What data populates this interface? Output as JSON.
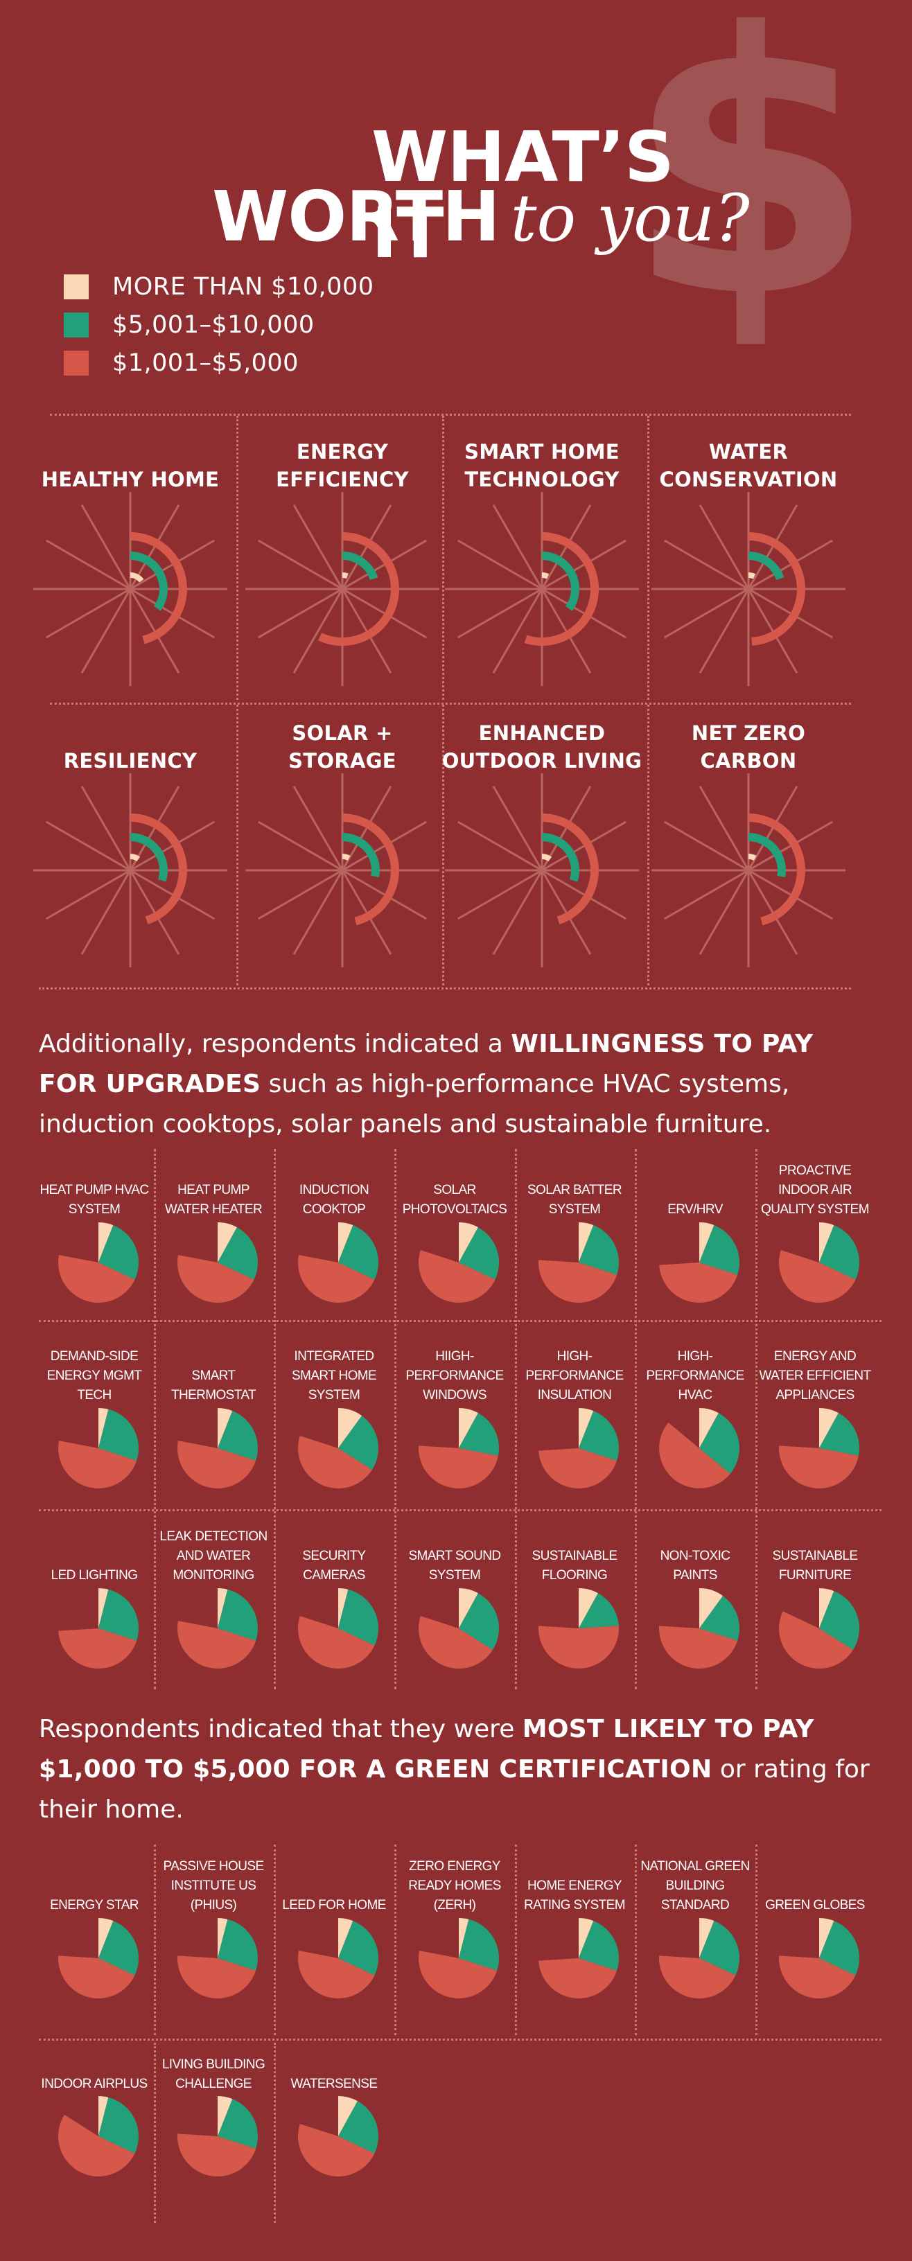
{
  "header": {
    "title_line1": "WHAT’S IT",
    "title_line2_bold": "WORTH",
    "title_line2_italic": "to you?",
    "decor_symbol": "$"
  },
  "colors": {
    "background": "#8e2e31",
    "more_than_10000": "#fbd8b6",
    "range_5001_10000": "#21a07a",
    "range_1001_5000": "#d6584a",
    "spoke": "#b86560",
    "divider": "#c87a72",
    "dollar": "#a25a58"
  },
  "legend": [
    {
      "label": "MORE THAN $10,000",
      "color": "#fbd8b6"
    },
    {
      "label": "$5,001–$10,000",
      "color": "#21a07a"
    },
    {
      "label": "$1,001–$5,000",
      "color": "#d6584a"
    }
  ],
  "paragraphs": {
    "upgrades": [
      {
        "text": "Additionally, respondents indicated a ",
        "strong": false
      },
      {
        "text": "WILLINGNESS TO PAY FOR UPGRADES",
        "strong": true
      },
      {
        "text": " such as high-performance HVAC systems, induction cooktops, solar panels and sustainable furniture.",
        "strong": false
      }
    ],
    "certification": [
      {
        "text": "Respondents indicated that they were ",
        "strong": false
      },
      {
        "text": "MOST LIKELY TO PAY $1,000 TO $5,000 FOR A GREEN CERTIFICATION",
        "strong": true
      },
      {
        "text": " or rating for their home.",
        "strong": false
      }
    ]
  },
  "chart_data": [
    {
      "type": "radial-bar",
      "title": "",
      "series": [
        "MORE THAN $10,000",
        "$5,001–$10,000",
        "$1,001–$5,000"
      ],
      "categories": [
        {
          "label": "HEALTHY HOME",
          "values": [
            15,
            35,
            46
          ]
        },
        {
          "label": "ENERGY EFFICIENCY",
          "values": [
            6,
            20,
            57
          ]
        },
        {
          "label": "SMART HOME TECHNOLOGY",
          "values": [
            7,
            35,
            55
          ]
        },
        {
          "label": "WATER CONSERVATION",
          "values": [
            7,
            20,
            49
          ]
        },
        {
          "label": "RESILIENCY",
          "values": [
            10,
            30,
            45
          ]
        },
        {
          "label": "SOLAR + STORAGE",
          "values": [
            8,
            28,
            46
          ]
        },
        {
          "label": "ENHANCED OUTDOOR LIVING",
          "values": [
            10,
            30,
            45
          ]
        },
        {
          "label": "NET ZERO CARBON",
          "values": [
            8,
            28,
            46
          ]
        }
      ]
    },
    {
      "type": "pie",
      "title": "",
      "series": [
        "MORE THAN $10,000",
        "$5,001–$10,000",
        "$1,001–$5,000"
      ],
      "items": [
        {
          "label": "HEAT PUMP HVAC SYSTEM",
          "values": [
            6,
            26,
            46
          ]
        },
        {
          "label": "HEAT PUMP WATER HEATER",
          "values": [
            8,
            24,
            46
          ]
        },
        {
          "label": "INDUCTION COOKTOP",
          "values": [
            6,
            26,
            46
          ]
        },
        {
          "label": "SOLAR PHOTOVOLTAICS",
          "values": [
            8,
            24,
            48
          ]
        },
        {
          "label": "SOLAR BATTER SYSTEM",
          "values": [
            6,
            24,
            46
          ]
        },
        {
          "label": "ERV/HRV",
          "values": [
            6,
            24,
            44
          ]
        },
        {
          "label": "PROACTIVE INDOOR AIR QUALITY SYSTEM",
          "values": [
            6,
            26,
            48
          ]
        },
        {
          "label": "DEMAND-SIDE ENERGY MGMT TECH",
          "values": [
            4,
            26,
            48
          ]
        },
        {
          "label": "SMART THERMOSTAT",
          "values": [
            6,
            24,
            48
          ]
        },
        {
          "label": "INTEGRATED SMART HOME SYSTEM",
          "values": [
            10,
            24,
            46
          ]
        },
        {
          "label": "HIIGH-PERFORMANCE WINDOWS",
          "values": [
            8,
            20,
            48
          ]
        },
        {
          "label": "HIGH-PERFORMANCE INSULATION",
          "values": [
            6,
            24,
            44
          ]
        },
        {
          "label": "HIGH-PERFORMANCE HVAC",
          "values": [
            8,
            28,
            50
          ]
        },
        {
          "label": "ENERGY AND WATER EFFICIENT APPLIANCES",
          "values": [
            8,
            20,
            48
          ]
        },
        {
          "label": "LED LIGHTING",
          "values": [
            4,
            26,
            44
          ]
        },
        {
          "label": "LEAK DETECTION AND WATER MONITORING",
          "values": [
            4,
            26,
            48
          ]
        },
        {
          "label": "SECURITY CAMERAS",
          "values": [
            4,
            28,
            48
          ]
        },
        {
          "label": "SMART SOUND SYSTEM",
          "values": [
            8,
            26,
            46
          ]
        },
        {
          "label": "SUSTAINABLE FLOORING",
          "values": [
            8,
            16,
            52
          ]
        },
        {
          "label": "NON-TOXIC PAINTS",
          "values": [
            10,
            20,
            46
          ]
        },
        {
          "label": "SUSTAINABLE FURNITURE",
          "values": [
            6,
            28,
            48
          ]
        },
        {
          "label": "ENERGY STAR",
          "values": [
            6,
            26,
            44
          ]
        },
        {
          "label": "PASSIVE HOUSE INSTITUTE US (PHIUS)",
          "values": [
            4,
            26,
            46
          ]
        },
        {
          "label": "LEED FOR HOME",
          "values": [
            6,
            26,
            46
          ]
        },
        {
          "label": "ZERO ENERGY READY HOMES (ZERH)",
          "values": [
            4,
            26,
            48
          ]
        },
        {
          "label": "HOME ENERGY RATING SYSTEM",
          "values": [
            6,
            24,
            44
          ]
        },
        {
          "label": "NATIONAL GREEN BUILDING STANDARD",
          "values": [
            6,
            26,
            44
          ]
        },
        {
          "label": "GREEN GLOBES",
          "values": [
            6,
            26,
            44
          ]
        },
        {
          "label": "INDOOR AIRPLUS",
          "values": [
            4,
            28,
            52
          ]
        },
        {
          "label": "LIVING BUILDING CHALLENGE",
          "values": [
            6,
            24,
            46
          ]
        },
        {
          "label": "WATERSENSE",
          "values": [
            8,
            24,
            48
          ]
        }
      ]
    }
  ]
}
